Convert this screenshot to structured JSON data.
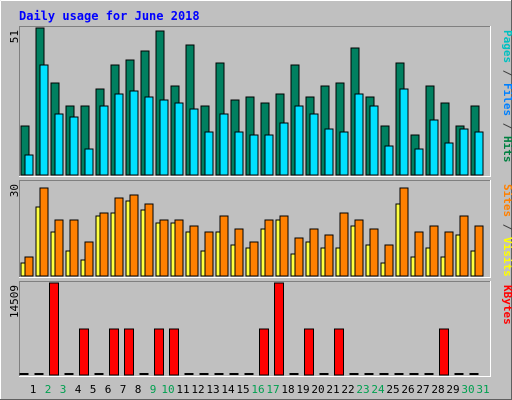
{
  "chart_data": {
    "type": "bar",
    "title": "Daily usage for June 2018",
    "days": [
      "1",
      "2",
      "3",
      "4",
      "5",
      "6",
      "7",
      "8",
      "9",
      "10",
      "11",
      "12",
      "13",
      "14",
      "15",
      "16",
      "17",
      "18",
      "19",
      "20",
      "21",
      "22",
      "23",
      "24",
      "25",
      "26",
      "27",
      "28",
      "29",
      "30",
      "31"
    ],
    "weekend_days": [
      2,
      3,
      9,
      10,
      16,
      17,
      23,
      24,
      30,
      31
    ],
    "panels": [
      {
        "id": "top",
        "max_label": "51",
        "ymax": 51,
        "legend": [
          {
            "text": "Pages",
            "color": "#00c0c0"
          },
          {
            "text": " / ",
            "color": "#404040"
          },
          {
            "text": "Files",
            "color": "#0080ff"
          },
          {
            "text": " / ",
            "color": "#404040"
          },
          {
            "text": "Hits",
            "color": "#008040"
          }
        ],
        "series": [
          {
            "key": "hits",
            "color": "#008060",
            "values": [
              17,
              51,
              32,
              24,
              24,
              30,
              38,
              40,
              43,
              50,
              31,
              45,
              24,
              39,
              26,
              27,
              25,
              28,
              38,
              27,
              31,
              32,
              44,
              27,
              17,
              39,
              14,
              31,
              25,
              17,
              24
            ]
          },
          {
            "key": "files",
            "color": "#00e0ff",
            "values": [
              7,
              38,
              21,
              20,
              9,
              24,
              28,
              29,
              27,
              26,
              25,
              23,
              15,
              21,
              15,
              14,
              14,
              18,
              24,
              21,
              16,
              15,
              28,
              24,
              10,
              30,
              9,
              19,
              11,
              16,
              15
            ]
          },
          {
            "key": "pages",
            "color": "#0000ff",
            "values": [
              0,
              0,
              0,
              0,
              0,
              0,
              0,
              0,
              0,
              0,
              0,
              0,
              0,
              0,
              0,
              0,
              0,
              0,
              0,
              0,
              0,
              0,
              0,
              0,
              0,
              0,
              0,
              0,
              0,
              0,
              0
            ]
          }
        ]
      },
      {
        "id": "mid",
        "max_label": "30",
        "ymax": 30,
        "legend": [
          {
            "text": "Sites",
            "color": "#ff8000"
          },
          {
            "text": " / ",
            "color": "#404040"
          },
          {
            "text": "Visits",
            "color": "#ffff00"
          }
        ],
        "series": [
          {
            "key": "visits",
            "color": "#ffff40",
            "values": [
              4,
              22,
              14,
              8,
              5,
              19,
              20,
              24,
              21,
              17,
              17,
              14,
              8,
              14,
              10,
              9,
              15,
              18,
              7,
              11,
              9,
              9,
              16,
              10,
              4,
              23,
              6,
              9,
              6,
              13,
              8
            ]
          },
          {
            "key": "sites",
            "color": "#ff8000",
            "values": [
              6,
              28,
              18,
              18,
              11,
              20,
              25,
              26,
              23,
              18,
              18,
              16,
              14,
              19,
              15,
              11,
              18,
              19,
              12,
              15,
              13,
              20,
              18,
              15,
              10,
              28,
              14,
              16,
              14,
              19,
              16
            ]
          }
        ]
      },
      {
        "id": "bot",
        "max_label": "14509",
        "ymax": 14509,
        "legend": [
          {
            "text": "KBytes",
            "color": "#ff0000"
          }
        ],
        "series": [
          {
            "key": "kbytes",
            "color": "#ff0000",
            "values": [
              0,
              0,
              14509,
              0,
              7250,
              0,
              7250,
              7250,
              0,
              7250,
              7250,
              0,
              0,
              0,
              0,
              0,
              7250,
              14509,
              0,
              7250,
              0,
              7250,
              0,
              0,
              0,
              0,
              0,
              0,
              7250,
              0,
              0
            ]
          }
        ]
      }
    ]
  }
}
